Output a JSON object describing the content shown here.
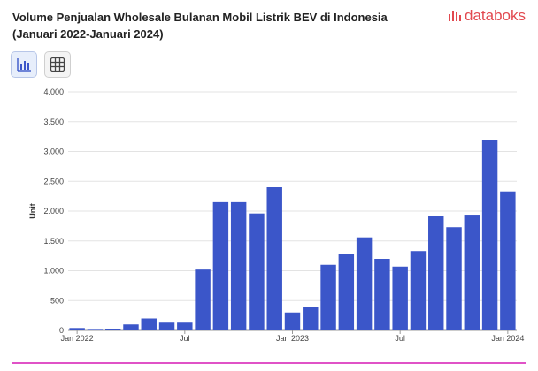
{
  "header": {
    "title_line1": "Volume Penjualan Wholesale Bulanan Mobil Listrik BEV di Indonesia",
    "title_line2": "(Januari 2022-Januari 2024)",
    "brand_name": "databoks",
    "brand_color": "#e2494f"
  },
  "toolbar": {
    "chart_view_icon": "bar-chart-icon",
    "table_view_icon": "table-grid-icon"
  },
  "colors": {
    "bar": "#3b56c9",
    "grid": "#e3e3e3",
    "accent_line": "#e052c7"
  },
  "chart_data": {
    "type": "bar",
    "title": "Volume Penjualan Wholesale Bulanan Mobil Listrik BEV di Indonesia (Januari 2022-Januari 2024)",
    "ylabel": "Unit",
    "xlabel": "",
    "ylim": [
      0,
      4000
    ],
    "yticks": [
      0,
      500,
      1000,
      1500,
      2000,
      2500,
      3000,
      3500,
      4000
    ],
    "ytick_labels": [
      "0",
      "500",
      "1.000",
      "1.500",
      "2.000",
      "2.500",
      "3.000",
      "3.500",
      "4.000"
    ],
    "xtick_labels": [
      {
        "index": 0,
        "label": "Jan 2022"
      },
      {
        "index": 6,
        "label": "Jul"
      },
      {
        "index": 12,
        "label": "Jan 2023"
      },
      {
        "index": 18,
        "label": "Jul"
      },
      {
        "index": 24,
        "label": "Jan 2024"
      }
    ],
    "categories": [
      "Jan 2022",
      "Feb 2022",
      "Mar 2022",
      "Apr 2022",
      "May 2022",
      "Jun 2022",
      "Jul 2022",
      "Aug 2022",
      "Sep 2022",
      "Oct 2022",
      "Nov 2022",
      "Dec 2022",
      "Jan 2023",
      "Feb 2023",
      "Mar 2023",
      "Apr 2023",
      "May 2023",
      "Jun 2023",
      "Jul 2023",
      "Aug 2023",
      "Sep 2023",
      "Oct 2023",
      "Nov 2023",
      "Dec 2023",
      "Jan 2024"
    ],
    "values": [
      40,
      10,
      20,
      100,
      200,
      130,
      130,
      1020,
      2150,
      2150,
      1960,
      2400,
      300,
      390,
      1100,
      1280,
      1560,
      1200,
      1070,
      1330,
      1920,
      1730,
      1940,
      3200,
      2330
    ],
    "grid": true,
    "legend": "none"
  }
}
